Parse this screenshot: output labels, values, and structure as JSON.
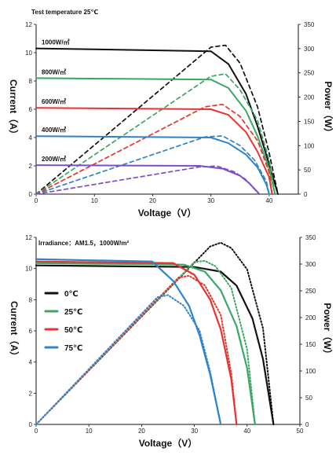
{
  "chart_data": [
    {
      "type": "line",
      "title": "Test temperature 25℃",
      "xlabel": "Voltage（V）",
      "ylabel_left": "Current（A）",
      "ylabel_right": "Power（W）",
      "xlim": [
        0,
        45
      ],
      "ylim_left": [
        0,
        12
      ],
      "ylim_right": [
        0,
        350
      ],
      "x_ticks": [
        0,
        10,
        20,
        30,
        40
      ],
      "y_ticks_left": [
        0,
        2,
        4,
        6,
        8,
        10,
        12
      ],
      "y_ticks_right": [
        0,
        50,
        100,
        150,
        200,
        250,
        300,
        350
      ],
      "grid": false,
      "series": [
        {
          "name": "1000W/㎡",
          "color": "#111111",
          "current_curve": [
            [
              0,
              10.3
            ],
            [
              30,
              10.1
            ],
            [
              33,
              9.2
            ],
            [
              36,
              7.1
            ],
            [
              38,
              4.8
            ],
            [
              40,
              2.1
            ],
            [
              41.5,
              0
            ]
          ],
          "power_curve": [
            [
              0,
              0
            ],
            [
              30,
              303
            ],
            [
              32.5,
              307
            ],
            [
              35,
              270
            ],
            [
              38,
              180
            ],
            [
              40,
              85
            ],
            [
              41.5,
              0
            ]
          ]
        },
        {
          "name": "800W/㎡",
          "color": "#3aa864",
          "current_curve": [
            [
              0,
              8.2
            ],
            [
              30,
              8.1
            ],
            [
              33,
              7.5
            ],
            [
              36,
              5.9
            ],
            [
              38,
              4.1
            ],
            [
              40,
              1.8
            ],
            [
              41,
              0
            ]
          ],
          "power_curve": [
            [
              0,
              0
            ],
            [
              30,
              243
            ],
            [
              32.5,
              248
            ],
            [
              35,
              215
            ],
            [
              38,
              152
            ],
            [
              40,
              70
            ],
            [
              41,
              0
            ]
          ]
        },
        {
          "name": "600W/㎡",
          "color": "#e8342d",
          "current_curve": [
            [
              0,
              6.1
            ],
            [
              30,
              6.0
            ],
            [
              33,
              5.6
            ],
            [
              36,
              4.4
            ],
            [
              38,
              3.0
            ],
            [
              40,
              1.2
            ],
            [
              40.5,
              0
            ]
          ],
          "power_curve": [
            [
              0,
              0
            ],
            [
              29,
              180
            ],
            [
              32,
              185
            ],
            [
              35,
              160
            ],
            [
              38,
              110
            ],
            [
              40,
              45
            ],
            [
              40.5,
              0
            ]
          ]
        },
        {
          "name": "400W/㎡",
          "color": "#2f84c8",
          "current_curve": [
            [
              0,
              4.1
            ],
            [
              30,
              4.0
            ],
            [
              33,
              3.6
            ],
            [
              36,
              2.8
            ],
            [
              38,
              1.9
            ],
            [
              39.5,
              0.7
            ],
            [
              40,
              0
            ]
          ],
          "power_curve": [
            [
              0,
              0
            ],
            [
              29,
              118
            ],
            [
              32,
              120
            ],
            [
              35,
              100
            ],
            [
              37.5,
              70
            ],
            [
              39.5,
              27
            ],
            [
              40,
              0
            ]
          ]
        },
        {
          "name": "200W/㎡",
          "color": "#7f4dc7",
          "current_curve": [
            [
              0,
              2.05
            ],
            [
              28,
              2.0
            ],
            [
              32,
              1.8
            ],
            [
              35,
              1.3
            ],
            [
              36.5,
              0.8
            ],
            [
              38,
              0.15
            ],
            [
              38.3,
              0
            ]
          ],
          "power_curve": [
            [
              0,
              0
            ],
            [
              28,
              56
            ],
            [
              31,
              58
            ],
            [
              34,
              46
            ],
            [
              36,
              30
            ],
            [
              37.8,
              6
            ],
            [
              38.3,
              0
            ]
          ]
        }
      ]
    },
    {
      "type": "line",
      "title": "Irradiance：AM1.5，1000W/m²",
      "xlabel": "Voltage（V）",
      "ylabel_left": "Current（A）",
      "ylabel_right": "Power（W）",
      "xlim": [
        0,
        50
      ],
      "ylim_left": [
        0,
        12
      ],
      "ylim_right": [
        0,
        350
      ],
      "x_ticks": [
        0,
        10,
        20,
        30,
        40,
        50
      ],
      "y_ticks_left": [
        0,
        2,
        4,
        6,
        8,
        10,
        12
      ],
      "y_ticks_right": [
        0,
        50,
        100,
        150,
        200,
        250,
        300,
        350
      ],
      "grid": false,
      "legend": "left",
      "series": [
        {
          "name": "0℃",
          "color": "#111111",
          "current_curve": [
            [
              0,
              10.2
            ],
            [
              30,
              10.1
            ],
            [
              35,
              9.8
            ],
            [
              38,
              8.9
            ],
            [
              41,
              6.8
            ],
            [
              43,
              4.2
            ],
            [
              45,
              0
            ]
          ],
          "power_curve": [
            [
              0,
              0
            ],
            [
              33,
              333
            ],
            [
              35,
              340
            ],
            [
              37,
              330
            ],
            [
              40,
              290
            ],
            [
              43,
              180
            ],
            [
              45,
              0
            ]
          ]
        },
        {
          "name": "25℃",
          "color": "#3aa864",
          "current_curve": [
            [
              0,
              10.35
            ],
            [
              28,
              10.25
            ],
            [
              32,
              9.8
            ],
            [
              35,
              8.6
            ],
            [
              38,
              6.3
            ],
            [
              40,
              3.6
            ],
            [
              41.5,
              0
            ]
          ],
          "power_curve": [
            [
              0,
              0
            ],
            [
              30,
              304
            ],
            [
              32,
              306
            ],
            [
              34,
              296
            ],
            [
              37,
              255
            ],
            [
              40,
              140
            ],
            [
              41.5,
              0
            ]
          ]
        },
        {
          "name": "50℃",
          "color": "#e8342d",
          "current_curve": [
            [
              0,
              10.45
            ],
            [
              26,
              10.35
            ],
            [
              30,
              9.6
            ],
            [
              33,
              8.0
            ],
            [
              35,
              6.1
            ],
            [
              37,
              2.9
            ],
            [
              38,
              0
            ]
          ],
          "power_curve": [
            [
              0,
              0
            ],
            [
              27,
              275
            ],
            [
              29,
              278
            ],
            [
              32,
              260
            ],
            [
              35,
              205
            ],
            [
              37,
              95
            ],
            [
              38,
              0
            ]
          ]
        },
        {
          "name": "75℃",
          "color": "#2f84c8",
          "current_curve": [
            [
              0,
              10.6
            ],
            [
              22,
              10.45
            ],
            [
              26,
              9.2
            ],
            [
              29,
              7.6
            ],
            [
              31,
              5.7
            ],
            [
              33,
              3.2
            ],
            [
              35,
              0
            ]
          ],
          "power_curve": [
            [
              0,
              0
            ],
            [
              23,
              238
            ],
            [
              25,
              242
            ],
            [
              28,
              222
            ],
            [
              31,
              175
            ],
            [
              33,
              98
            ],
            [
              35,
              0
            ]
          ]
        }
      ]
    }
  ]
}
